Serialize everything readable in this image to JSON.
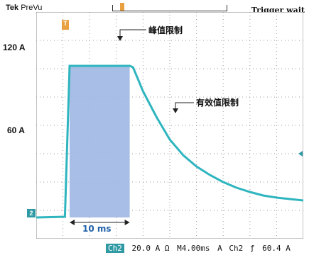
{
  "header": {
    "brand": "Tek",
    "mode": "PreVu",
    "trigger_status": "Trigger wait"
  },
  "chart_data": {
    "type": "line",
    "y_tick_labels": [
      "120 A",
      "60 A"
    ],
    "ylim": [
      0,
      160
    ],
    "xlim": [
      0,
      40
    ],
    "x_unit_per_div": "4.00ms",
    "grid": true,
    "series": [
      {
        "name": "Ch2",
        "color": "#2fb5bf",
        "x": [
          0,
          4.3,
          5.0,
          14.0,
          14.5,
          16,
          18,
          20,
          22,
          24,
          26,
          28,
          30,
          32,
          34,
          36,
          38,
          40
        ],
        "y": [
          15,
          15.5,
          122,
          122,
          121,
          104,
          86,
          70,
          59,
          51,
          45,
          40,
          36,
          33,
          30.5,
          29,
          28,
          27
        ]
      }
    ],
    "highlight": {
      "x_start": 5.0,
      "x_end": 14.0,
      "color": "#9fb7e3"
    },
    "annotations": {
      "peak_limit": "峰值限制",
      "rms_limit": "有效值限制",
      "duration": "10 ms"
    },
    "channel_marker": "2",
    "trigger_marker": "T"
  },
  "status_bar": {
    "channel": "Ch2",
    "scale": "20.0 A Ω",
    "timebase": "M4.00ms",
    "trigger_letter": "A",
    "trigger_channel": "Ch2",
    "trigger_level": "60.4 A"
  }
}
